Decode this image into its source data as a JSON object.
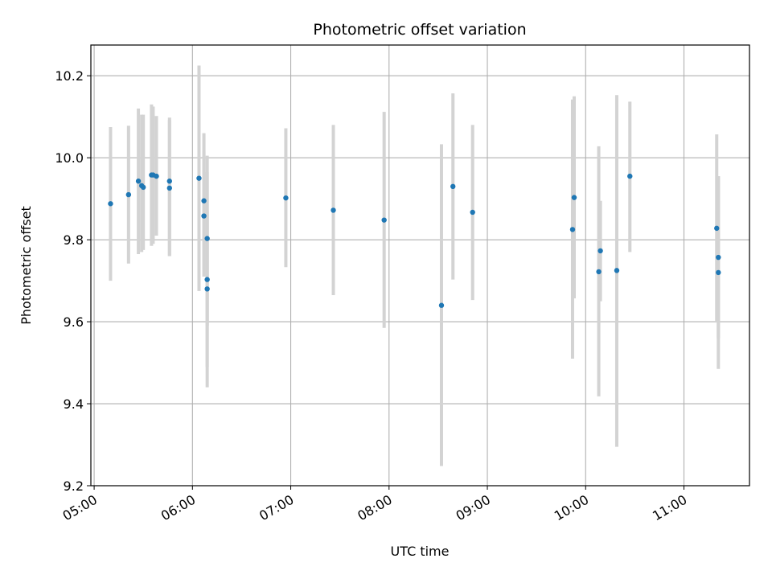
{
  "chart_data": {
    "type": "scatter",
    "title": "Photometric offset variation",
    "xlabel": "UTC time",
    "ylabel": "Photometric offset",
    "x_unit": "UTC time (HH:MM)",
    "xlim": [
      "04:58",
      "11:40"
    ],
    "ylim": [
      9.2,
      10.275
    ],
    "x_ticks": [
      "05:00",
      "06:00",
      "07:00",
      "08:00",
      "09:00",
      "10:00",
      "11:00"
    ],
    "y_ticks": [
      "9.2",
      "9.4",
      "9.6",
      "9.8",
      "10.0",
      "10.2"
    ],
    "grid": true,
    "colors": {
      "marker": "#1f77b4",
      "errorbar": "#d3d3d3",
      "grid": "#b0b0b0"
    },
    "series": [
      {
        "points": [
          {
            "x": "05:10",
            "y": 9.888,
            "ylo": 9.7,
            "yhi": 10.075
          },
          {
            "x": "05:21",
            "y": 9.91,
            "ylo": 9.742,
            "yhi": 10.078
          },
          {
            "x": "05:27",
            "y": 9.943,
            "ylo": 9.765,
            "yhi": 10.12
          },
          {
            "x": "05:29",
            "y": 9.932,
            "ylo": 9.77,
            "yhi": 10.105
          },
          {
            "x": "05:30",
            "y": 9.928,
            "ylo": 9.775,
            "yhi": 10.105
          },
          {
            "x": "05:35",
            "y": 9.958,
            "ylo": 9.785,
            "yhi": 10.13
          },
          {
            "x": "05:36",
            "y": 9.958,
            "ylo": 9.79,
            "yhi": 10.125
          },
          {
            "x": "05:38",
            "y": 9.955,
            "ylo": 9.81,
            "yhi": 10.102
          },
          {
            "x": "05:46",
            "y": 9.943,
            "ylo": 9.76,
            "yhi": 10.098
          },
          {
            "x": "05:46",
            "y": 9.926,
            "ylo": 9.76,
            "yhi": 10.092
          },
          {
            "x": "06:04",
            "y": 9.95,
            "ylo": 9.675,
            "yhi": 10.225
          },
          {
            "x": "06:07",
            "y": 9.895,
            "ylo": 9.73,
            "yhi": 10.06
          },
          {
            "x": "06:07",
            "y": 9.858,
            "ylo": 9.71,
            "yhi": 10.015
          },
          {
            "x": "06:09",
            "y": 9.803,
            "ylo": 9.59,
            "yhi": 10.005
          },
          {
            "x": "06:09",
            "y": 9.703,
            "ylo": 9.44,
            "yhi": 9.965
          },
          {
            "x": "06:09",
            "y": 9.68,
            "ylo": 9.49,
            "yhi": 9.87
          },
          {
            "x": "06:57",
            "y": 9.902,
            "ylo": 9.733,
            "yhi": 10.072
          },
          {
            "x": "07:26",
            "y": 9.872,
            "ylo": 9.665,
            "yhi": 10.08
          },
          {
            "x": "07:57",
            "y": 9.848,
            "ylo": 9.585,
            "yhi": 10.112
          },
          {
            "x": "08:32",
            "y": 9.64,
            "ylo": 9.248,
            "yhi": 10.033
          },
          {
            "x": "08:39",
            "y": 9.93,
            "ylo": 9.703,
            "yhi": 10.157
          },
          {
            "x": "08:51",
            "y": 9.867,
            "ylo": 9.653,
            "yhi": 10.08
          },
          {
            "x": "09:52",
            "y": 9.825,
            "ylo": 9.51,
            "yhi": 10.142
          },
          {
            "x": "09:53",
            "y": 9.903,
            "ylo": 9.657,
            "yhi": 10.15
          },
          {
            "x": "10:08",
            "y": 9.722,
            "ylo": 9.418,
            "yhi": 10.028
          },
          {
            "x": "10:09",
            "y": 9.773,
            "ylo": 9.65,
            "yhi": 9.895
          },
          {
            "x": "10:19",
            "y": 9.725,
            "ylo": 9.295,
            "yhi": 10.153
          },
          {
            "x": "10:27",
            "y": 9.955,
            "ylo": 9.77,
            "yhi": 10.137
          },
          {
            "x": "11:20",
            "y": 9.828,
            "ylo": 9.598,
            "yhi": 10.057
          },
          {
            "x": "11:21",
            "y": 9.757,
            "ylo": 9.56,
            "yhi": 9.955
          },
          {
            "x": "11:21",
            "y": 9.72,
            "ylo": 9.485,
            "yhi": 9.955
          }
        ]
      }
    ]
  }
}
